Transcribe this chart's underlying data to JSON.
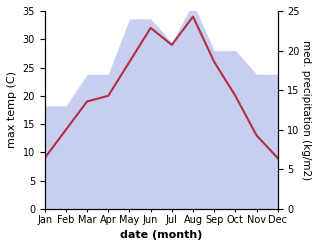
{
  "months": [
    "Jan",
    "Feb",
    "Mar",
    "Apr",
    "May",
    "Jun",
    "Jul",
    "Aug",
    "Sep",
    "Oct",
    "Nov",
    "Dec"
  ],
  "temperature": [
    9,
    14,
    19,
    20,
    26,
    32,
    29,
    34,
    26,
    20,
    13,
    9
  ],
  "precipitation": [
    13,
    13,
    17,
    17,
    24,
    24,
    21,
    26,
    20,
    20,
    17,
    17
  ],
  "temp_color": "#b03040",
  "precip_fill_color": "#c8cef0",
  "temp_ylim": [
    0,
    35
  ],
  "precip_ylim": [
    0,
    25
  ],
  "temp_yticks": [
    0,
    5,
    10,
    15,
    20,
    25,
    30,
    35
  ],
  "precip_yticks": [
    0,
    5,
    10,
    15,
    20,
    25
  ],
  "xlabel": "date (month)",
  "ylabel_left": "max temp (C)",
  "ylabel_right": "med. precipitation (kg/m2)",
  "label_fontsize": 8,
  "tick_fontsize": 7,
  "background_color": "#ffffff"
}
